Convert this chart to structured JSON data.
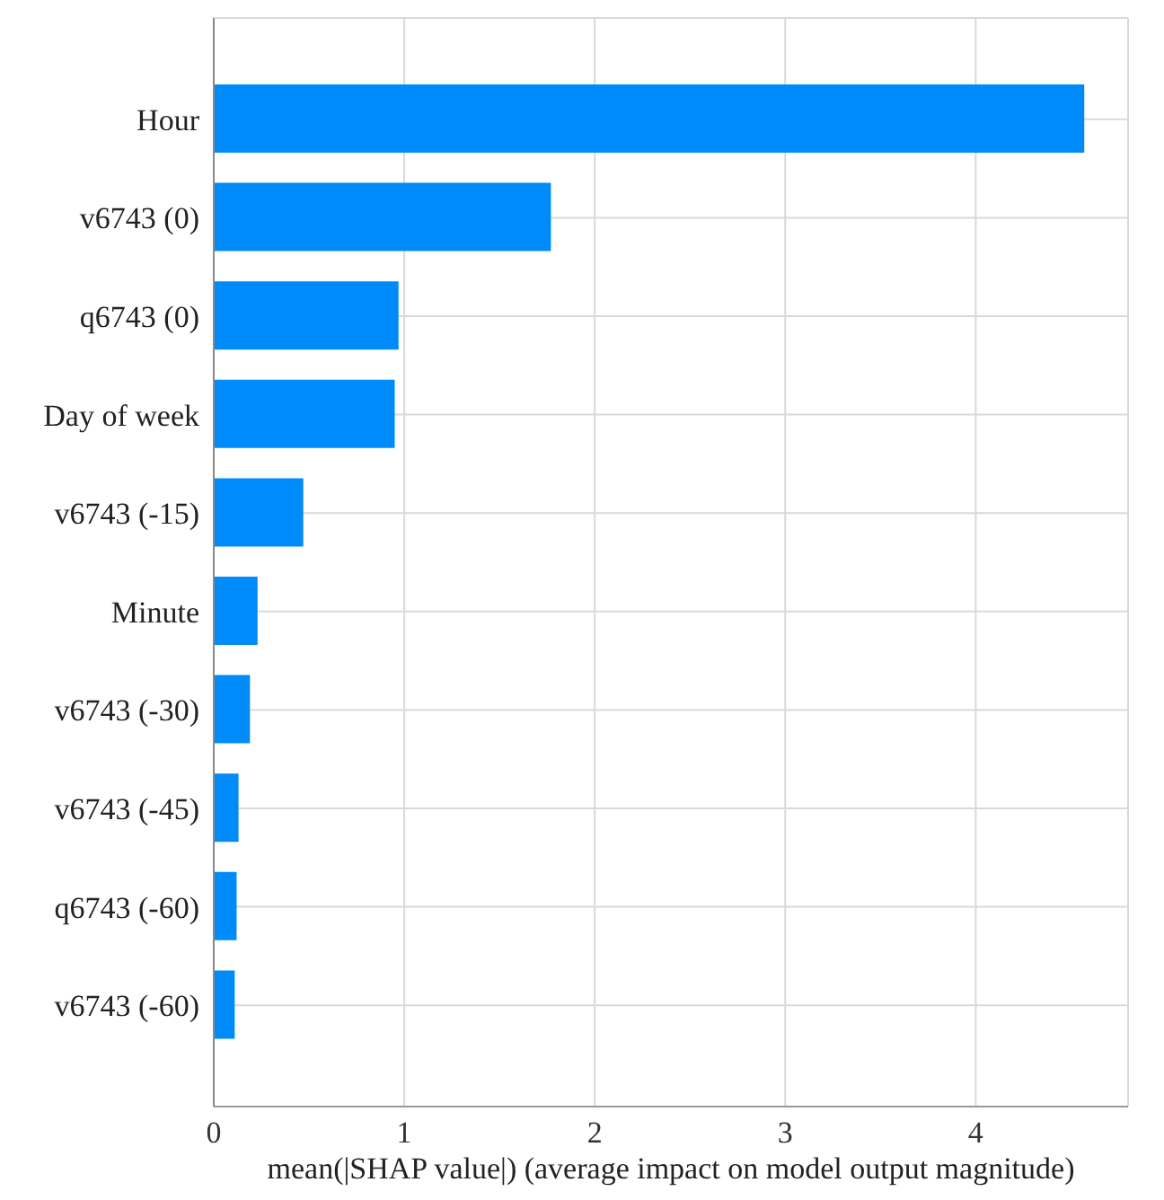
{
  "chart_data": {
    "type": "bar",
    "orientation": "horizontal",
    "xlabel": "mean(|SHAP value|) (average impact on model output magnitude)",
    "categories": [
      "Hour",
      "v6743 (0)",
      "q6743 (0)",
      "Day of week",
      "v6743 (-15)",
      "Minute",
      "v6743 (-30)",
      "v6743 (-45)",
      "q6743 (-60)",
      "v6743 (-60)"
    ],
    "values": [
      4.57,
      1.77,
      0.97,
      0.95,
      0.47,
      0.23,
      0.19,
      0.13,
      0.12,
      0.11
    ],
    "color": "#008bfb",
    "xlim": [
      0,
      4.8
    ],
    "xticks": [
      0,
      1,
      2,
      3,
      4
    ],
    "grid": true
  }
}
